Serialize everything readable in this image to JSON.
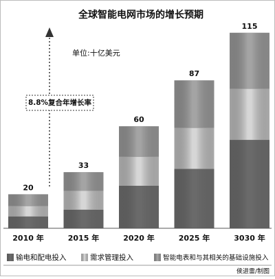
{
  "chart_data": {
    "type": "stacked-bar",
    "title": "全球智能电网市场的增长预期",
    "unit_note": "单位:十亿美元",
    "annotation": "8.8%复合年增长率",
    "credit": "侯进雷/制图",
    "categories": [
      "2010 年",
      "2015 年",
      "2020 年",
      "2025 年",
      "3030 年"
    ],
    "totals": [
      20,
      33,
      60,
      87,
      115
    ],
    "series": [
      {
        "name": "输电和配电投入",
        "color": "#6a6a6a",
        "values": [
          7,
          11,
          25,
          35,
          52
        ]
      },
      {
        "name": "需求管理投入",
        "color": "#d6d6d6",
        "values": [
          6,
          11,
          17,
          24,
          30
        ]
      },
      {
        "name": "智能电表和与其相关的基础设施投入",
        "color": "#a4a4a4",
        "values": [
          7,
          11,
          18,
          28,
          33
        ]
      }
    ]
  }
}
